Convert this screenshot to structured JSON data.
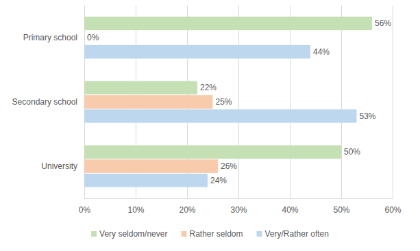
{
  "chart_data": {
    "type": "bar",
    "orientation": "horizontal",
    "categories": [
      "Primary school",
      "Secondary school",
      "University"
    ],
    "series": [
      {
        "name": "Very seldom/never",
        "color": "#c5e0b4",
        "values": [
          56,
          22,
          50
        ],
        "value_labels": [
          "56%",
          "22%",
          "50%"
        ]
      },
      {
        "name": "Rather seldom",
        "color": "#f8cbad",
        "values": [
          0,
          25,
          26
        ],
        "value_labels": [
          "0%",
          "25%",
          "26%"
        ]
      },
      {
        "name": "Very/Rather often",
        "color": "#bdd7ee",
        "values": [
          44,
          53,
          24
        ],
        "value_labels": [
          "44%",
          "53%",
          "24%"
        ]
      }
    ],
    "xlim": [
      0,
      60
    ],
    "xticks": [
      {
        "value": 0,
        "label": "0%"
      },
      {
        "value": 10,
        "label": "10%"
      },
      {
        "value": 20,
        "label": "20%"
      },
      {
        "value": 30,
        "label": "30%"
      },
      {
        "value": 40,
        "label": "40%"
      },
      {
        "value": 50,
        "label": "50%"
      },
      {
        "value": 60,
        "label": "60%"
      }
    ],
    "grid": true,
    "legend": "bottom",
    "data_labels": true
  }
}
